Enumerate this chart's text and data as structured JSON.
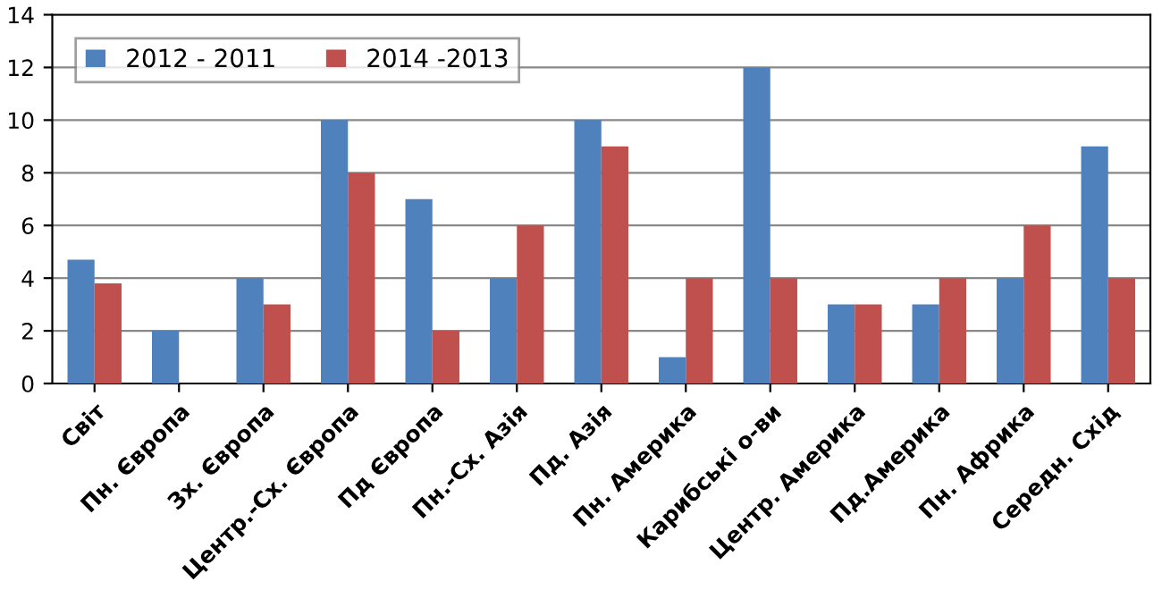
{
  "chart_data": {
    "type": "bar",
    "categories": [
      "Світ",
      "Пн. Європа",
      "Зх. Європа",
      "Центр.-Сх. Європа",
      "Пд Європа",
      "Пн.-Сх. Азія",
      "Пд. Азія",
      "Пн. Америка",
      "Карибські о-ви",
      "Центр. Америка",
      "Пд.Америка",
      "Пн. Африка",
      "Середн. Схід"
    ],
    "series": [
      {
        "name": "2012 - 2011",
        "color": "#4f81bd",
        "values": [
          4.7,
          2,
          4,
          10,
          7,
          4,
          10,
          1,
          12,
          3,
          3,
          4,
          9
        ]
      },
      {
        "name": "2014 -2013",
        "color": "#c0504d",
        "values": [
          3.8,
          0,
          3,
          8,
          2,
          6,
          9,
          4,
          4,
          3,
          4,
          6,
          4
        ]
      }
    ],
    "ylim": [
      0,
      14
    ],
    "yticks": [
      0,
      2,
      4,
      6,
      8,
      10,
      12,
      14
    ],
    "grid": "y",
    "legend": "top left"
  }
}
